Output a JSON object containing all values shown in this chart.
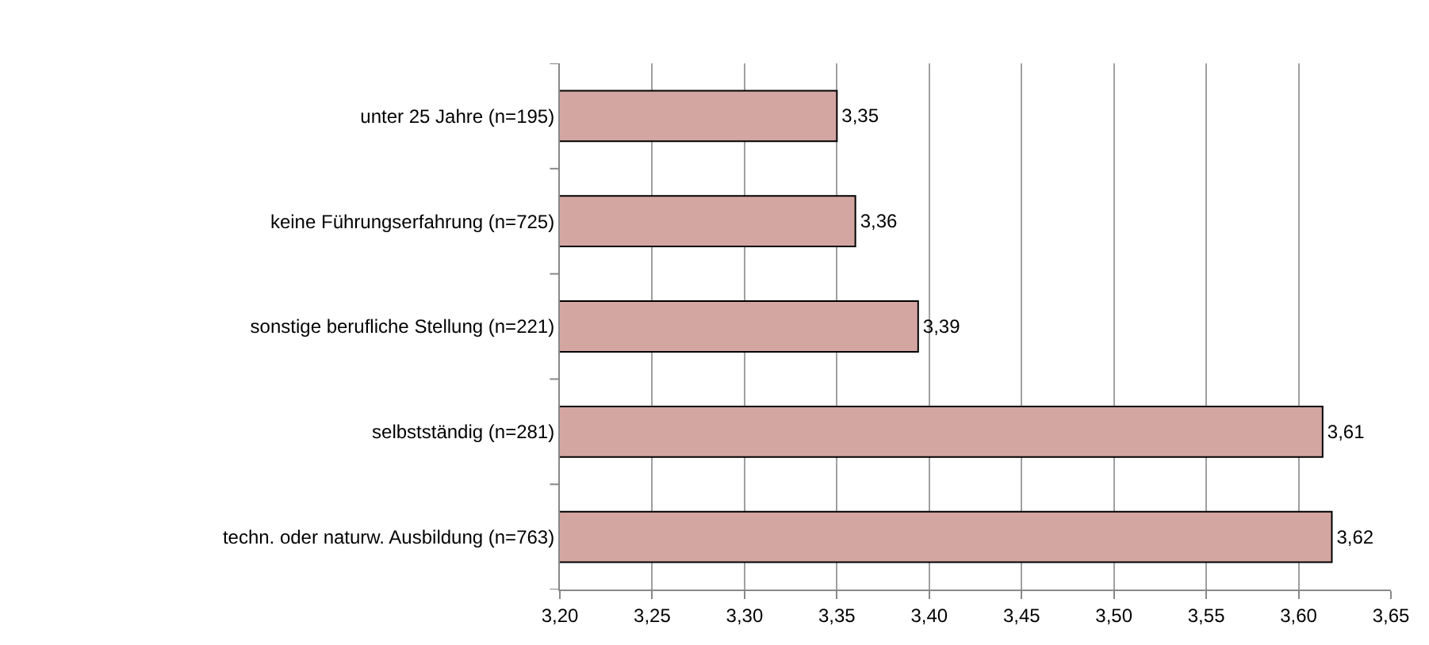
{
  "chart_data": {
    "type": "bar",
    "orientation": "horizontal",
    "categories": [
      "unter 25 Jahre (n=195)",
      "keine Führungserfahrung (n=725)",
      "sonstige berufliche Stellung (n=221)",
      "selbstständig (n=281)",
      "techn. oder naturw. Ausbildung (n=763)"
    ],
    "values": [
      3.35,
      3.36,
      3.394,
      3.613,
      3.618
    ],
    "value_labels": [
      "3,35",
      "3,36",
      "3,39",
      "3,61",
      "3,62"
    ],
    "color": "#d4a6a2",
    "xlim": [
      3.2,
      3.65
    ],
    "xticks": [
      {
        "value": 3.2,
        "label": "3,20"
      },
      {
        "value": 3.25,
        "label": "3,25"
      },
      {
        "value": 3.3,
        "label": "3,30"
      },
      {
        "value": 3.35,
        "label": "3,35"
      },
      {
        "value": 3.4,
        "label": "3,40"
      },
      {
        "value": 3.45,
        "label": "3,45"
      },
      {
        "value": 3.5,
        "label": "3,50"
      },
      {
        "value": 3.55,
        "label": "3,55"
      },
      {
        "value": 3.6,
        "label": "3,60"
      },
      {
        "value": 3.65,
        "label": "3,65"
      }
    ],
    "grid": "x"
  }
}
